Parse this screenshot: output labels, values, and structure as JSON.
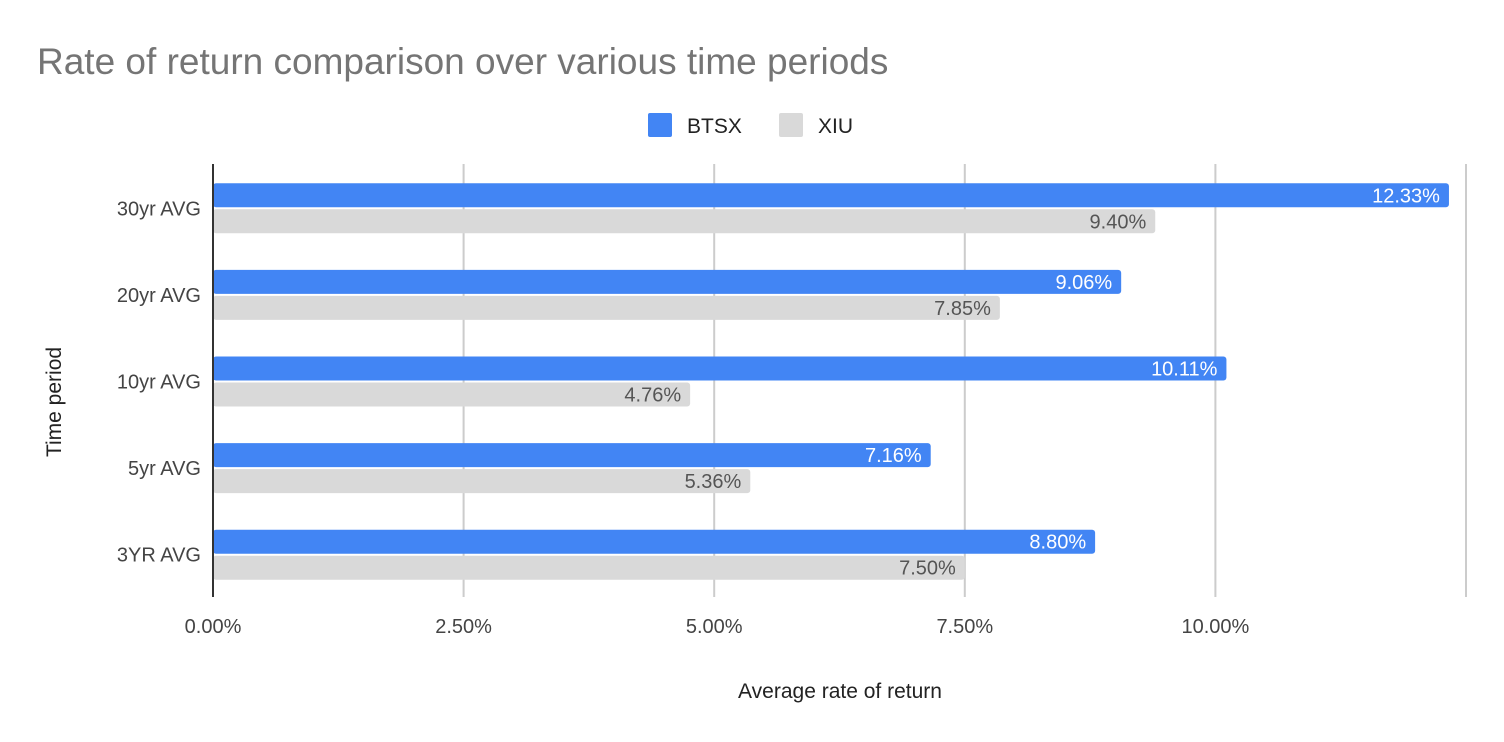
{
  "chart_data": {
    "type": "bar",
    "orientation": "horizontal",
    "title": "Rate of return comparison over various time periods",
    "xlabel": "Average rate of return",
    "ylabel": "Time period",
    "categories": [
      "30yr AVG",
      "20yr AVG",
      "10yr AVG",
      "5yr AVG",
      "3YR AVG"
    ],
    "series": [
      {
        "name": "BTSX",
        "color": "#4285f4",
        "values": [
          12.33,
          9.06,
          10.11,
          7.16,
          8.8
        ],
        "labels": [
          "12.33%",
          "9.06%",
          "10.11%",
          "7.16%",
          "8.80%"
        ]
      },
      {
        "name": "XIU",
        "color": "#d9d9d9",
        "values": [
          9.4,
          7.85,
          4.76,
          5.36,
          7.5
        ],
        "labels": [
          "9.40%",
          "7.85%",
          "4.76%",
          "5.36%",
          "7.50%"
        ]
      }
    ],
    "xlim": [
      0,
      12.5
    ],
    "xticks": [
      0,
      2.5,
      5,
      7.5,
      10
    ],
    "xtick_labels": [
      "0.00%",
      "2.50%",
      "5.00%",
      "7.50%",
      "10.00%"
    ],
    "grid": true,
    "legend_position": "top"
  }
}
